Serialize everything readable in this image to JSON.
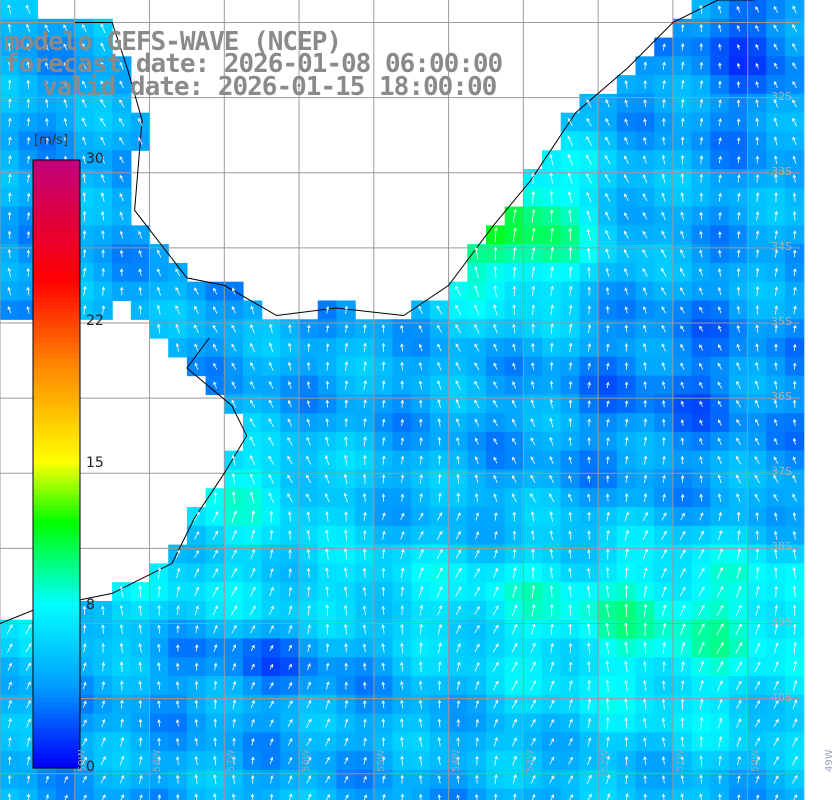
{
  "titles": {
    "model": "modelo GEFS-WAVE (NCEP)",
    "forecast": "forecast date: 2026-01-08 06:00:00",
    "valid": "valid date: 2026-01-15 18:00:00"
  },
  "colorbar": {
    "unit": "[m/s]",
    "min": 0,
    "max": 30,
    "ticks": [
      {
        "value": 30,
        "label": "30"
      },
      {
        "value": 22,
        "label": "22"
      },
      {
        "value": 15,
        "label": "15"
      },
      {
        "value": 8,
        "label": "8"
      },
      {
        "value": 0,
        "label": "0"
      }
    ],
    "colors": [
      "#0000ff",
      "#00a0ff",
      "#00ffff",
      "#00ff00",
      "#ffff00",
      "#ff8000",
      "#ff0000",
      "#c00080"
    ]
  },
  "lat_labels": [
    "32S",
    "33S",
    "34S",
    "35S",
    "36S",
    "37S",
    "38S",
    "39S",
    "40S"
  ],
  "lon_labels": [
    "59W",
    "58W",
    "57W",
    "56W",
    "55W",
    "54W",
    "53W",
    "52W",
    "51W",
    "50W",
    "49W"
  ],
  "map": {
    "lon_range": [
      -60,
      -49.3
    ],
    "lat_range": [
      -41.35,
      -30.7
    ],
    "grid_lon_step": 1,
    "grid_lat_step": 1,
    "grid_color": "#9a9a9a",
    "coast_color": "#000000",
    "arrow_color": "#ffffff",
    "coastline": [
      [
        -59,
        -31
      ],
      [
        -58.5,
        -31
      ],
      [
        -58.3,
        -31.6
      ],
      [
        -58.1,
        -32.3
      ],
      [
        -58.2,
        -33.5
      ],
      [
        -57.5,
        -34.4
      ],
      [
        -57,
        -34.5
      ],
      [
        -56.3,
        -34.9
      ],
      [
        -55.5,
        -34.8
      ],
      [
        -54.6,
        -34.9
      ],
      [
        -54,
        -34.5
      ],
      [
        -53.4,
        -33.7
      ],
      [
        -52.9,
        -33.1
      ],
      [
        -52.3,
        -32.2
      ],
      [
        -51.6,
        -31.6
      ],
      [
        -51,
        -31
      ],
      [
        -50.4,
        -30.7
      ],
      [
        -49.9,
        -30.7
      ],
      [
        -57.2,
        -35.2
      ],
      [
        -57.5,
        -35.6
      ],
      [
        -56.9,
        -36.1
      ],
      [
        -56.7,
        -36.5
      ],
      [
        -57,
        -37
      ],
      [
        -57.4,
        -37.6
      ],
      [
        -57.7,
        -38.2
      ],
      [
        -58.5,
        -38.6
      ],
      [
        -59.5,
        -38.8
      ],
      [
        -60,
        -39
      ]
    ]
  }
}
